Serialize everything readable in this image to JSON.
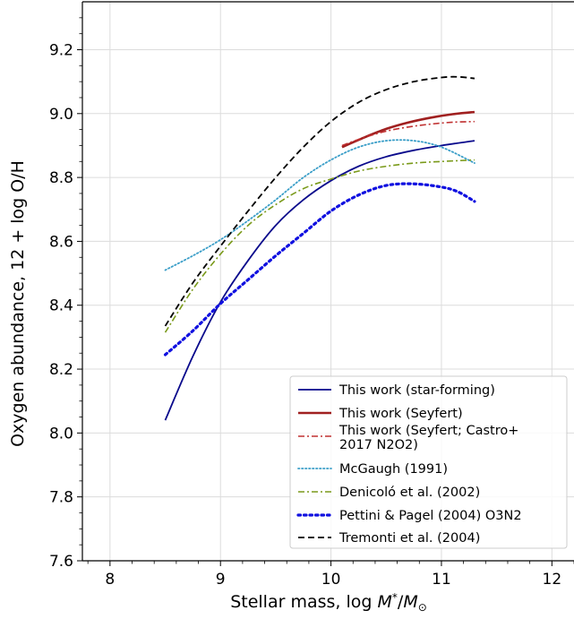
{
  "chart_data": {
    "type": "line",
    "xlabel": "Stellar mass, log ",
    "xlabel_math": "M",
    "xlabel_sub": "*",
    "xlabel_sep": "/",
    "xlabel_math2": "M",
    "xlabel_sun": "⊙",
    "ylabel": "Oxygen abundance, 12 + log O/H",
    "xlim": [
      7.75,
      12.2
    ],
    "ylim": [
      7.6,
      9.35
    ],
    "xticks": [
      "8",
      "9",
      "10",
      "11",
      "12"
    ],
    "yticks": [
      "7.6",
      "7.8",
      "8.0",
      "8.2",
      "8.4",
      "8.6",
      "8.8",
      "9.0",
      "9.2"
    ],
    "grid": true,
    "legend_position": "lower-right",
    "series": [
      {
        "name": "This work (star-forming)",
        "color": "#0a0a8c",
        "style": "solid",
        "width": 1.8,
        "x": [
          8.5,
          8.75,
          9.0,
          9.25,
          9.5,
          9.75,
          10.0,
          10.25,
          10.5,
          10.75,
          11.0,
          11.3
        ],
        "y": [
          8.04,
          8.24,
          8.41,
          8.54,
          8.65,
          8.73,
          8.79,
          8.835,
          8.865,
          8.885,
          8.9,
          8.915
        ]
      },
      {
        "name": "This work (Seyfert)",
        "color": "#a02020",
        "style": "solid",
        "width": 2.6,
        "x": [
          10.1,
          10.3,
          10.5,
          10.7,
          10.9,
          11.1,
          11.3
        ],
        "y": [
          8.895,
          8.925,
          8.952,
          8.972,
          8.987,
          8.998,
          9.005
        ]
      },
      {
        "name": "This work (Seyfert; Castro+",
        "name2": "2017 N2O2)",
        "color": "#c03030",
        "style": "dashdot",
        "width": 1.6,
        "x": [
          10.1,
          10.3,
          10.5,
          10.7,
          10.9,
          11.1,
          11.3
        ],
        "y": [
          8.9,
          8.925,
          8.945,
          8.958,
          8.967,
          8.973,
          8.975
        ]
      },
      {
        "name": "McGaugh (1991)",
        "color": "#3a9ec8",
        "style": "dotted",
        "width": 1.8,
        "x": [
          8.5,
          8.75,
          9.0,
          9.25,
          9.5,
          9.75,
          10.0,
          10.25,
          10.5,
          10.75,
          11.0,
          11.3
        ],
        "y": [
          8.51,
          8.555,
          8.605,
          8.665,
          8.73,
          8.8,
          8.855,
          8.895,
          8.915,
          8.915,
          8.895,
          8.845
        ]
      },
      {
        "name": "Denicoló et al. (2002)",
        "color": "#7a9a1a",
        "style": "dashdot",
        "width": 1.6,
        "x": [
          8.5,
          8.75,
          9.0,
          9.25,
          9.5,
          9.75,
          10.0,
          10.25,
          10.5,
          10.75,
          11.0,
          11.3
        ],
        "y": [
          8.315,
          8.45,
          8.56,
          8.65,
          8.715,
          8.765,
          8.795,
          8.82,
          8.835,
          8.845,
          8.85,
          8.855
        ]
      },
      {
        "name": "Pettini & Pagel (2004) O3N2",
        "color": "#1010e0",
        "style": "dotted-bold",
        "width": 3.2,
        "x": [
          8.5,
          8.75,
          9.0,
          9.25,
          9.5,
          9.75,
          10.0,
          10.25,
          10.5,
          10.75,
          11.0,
          11.15,
          11.3
        ],
        "y": [
          8.245,
          8.32,
          8.405,
          8.48,
          8.555,
          8.625,
          8.695,
          8.745,
          8.775,
          8.78,
          8.77,
          8.755,
          8.725
        ]
      },
      {
        "name": "Tremonti et al. (2004)",
        "color": "#000000",
        "style": "dashed",
        "width": 1.8,
        "x": [
          8.5,
          8.75,
          9.0,
          9.25,
          9.5,
          9.75,
          10.0,
          10.25,
          10.5,
          10.75,
          11.0,
          11.15,
          11.3
        ],
        "y": [
          8.335,
          8.47,
          8.585,
          8.695,
          8.8,
          8.895,
          8.975,
          9.035,
          9.075,
          9.1,
          9.113,
          9.115,
          9.11
        ]
      }
    ]
  }
}
